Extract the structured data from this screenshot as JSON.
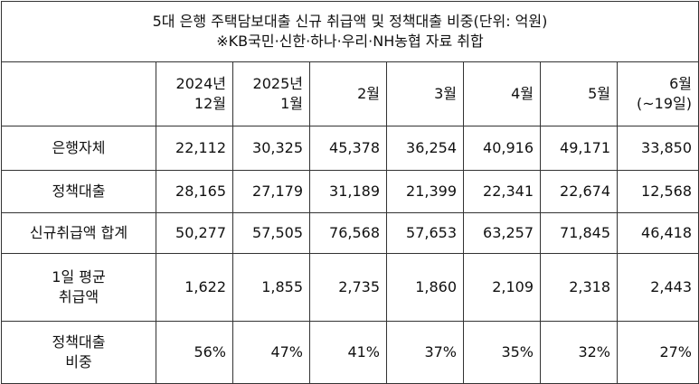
{
  "title": {
    "line1": "5대 은행 주택담보대출 신규 취급액 및 정책대출 비중(단위: 억원)",
    "line2": "※KB국민·신한·하나·우리·NH농협 자료 취합"
  },
  "columns": [
    {
      "line1": "2024년",
      "line2": "12월"
    },
    {
      "line1": "2025년",
      "line2": "1월"
    },
    {
      "line1": "2월",
      "line2": ""
    },
    {
      "line1": "3월",
      "line2": ""
    },
    {
      "line1": "4월",
      "line2": ""
    },
    {
      "line1": "5월",
      "line2": ""
    },
    {
      "line1": "6월",
      "line2": "(~19일)"
    }
  ],
  "rows": [
    {
      "label1": "은행자체",
      "label2": "",
      "values": [
        "22,112",
        "30,325",
        "45,378",
        "36,254",
        "40,916",
        "49,171",
        "33,850"
      ]
    },
    {
      "label1": "정책대출",
      "label2": "",
      "values": [
        "28,165",
        "27,179",
        "31,189",
        "21,399",
        "22,341",
        "22,674",
        "12,568"
      ]
    },
    {
      "label1": "신규취급액 합계",
      "label2": "",
      "values": [
        "50,277",
        "57,505",
        "76,568",
        "57,653",
        "63,257",
        "71,845",
        "46,418"
      ]
    },
    {
      "label1": "1일 평균",
      "label2": "취급액",
      "values": [
        "1,622",
        "1,855",
        "2,735",
        "1,860",
        "2,109",
        "2,318",
        "2,443"
      ]
    },
    {
      "label1": "정책대출",
      "label2": "비중",
      "values": [
        "56%",
        "47%",
        "41%",
        "37%",
        "35%",
        "32%",
        "27%"
      ]
    }
  ]
}
